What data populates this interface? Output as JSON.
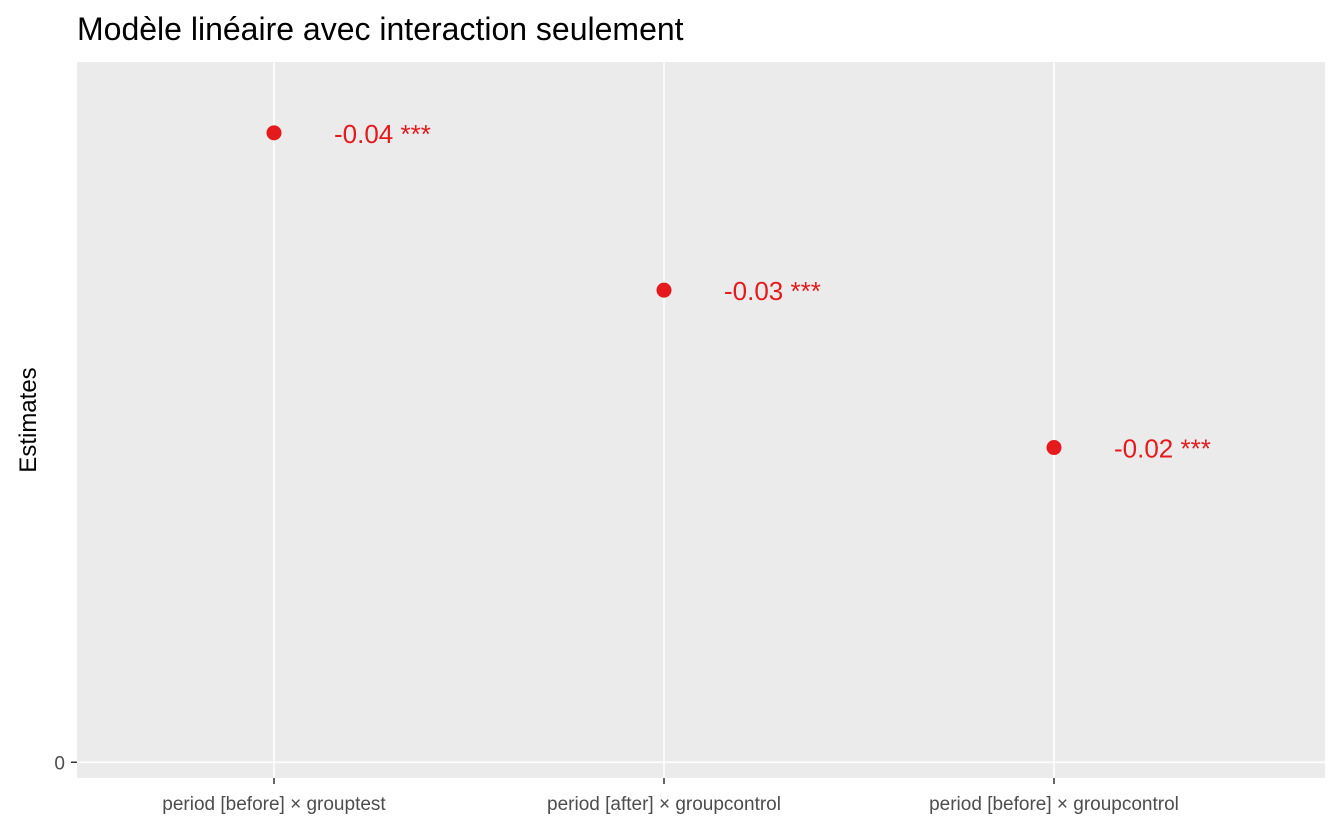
{
  "chart_data": {
    "type": "scatter",
    "title": "Modèle linéaire avec interaction seulement",
    "xlabel": "",
    "ylabel": "Estimates",
    "categories": [
      "period [before] × grouptest",
      "period [after] × groupcontrol",
      "period [before] × groupcontrol"
    ],
    "values": [
      -0.04,
      -0.03,
      -0.02
    ],
    "labels": [
      "-0.04 ***",
      "-0.03 ***",
      "-0.02 ***"
    ],
    "yticks": [
      0
    ],
    "ytick_labels": [
      "0"
    ],
    "ylim": [
      0.001,
      -0.0445
    ],
    "y_direction": "reversed",
    "grid": true,
    "legend": "none",
    "point_color": "#e41a1c",
    "panel_color": "#ebebeb",
    "grid_color": "#ffffff"
  }
}
